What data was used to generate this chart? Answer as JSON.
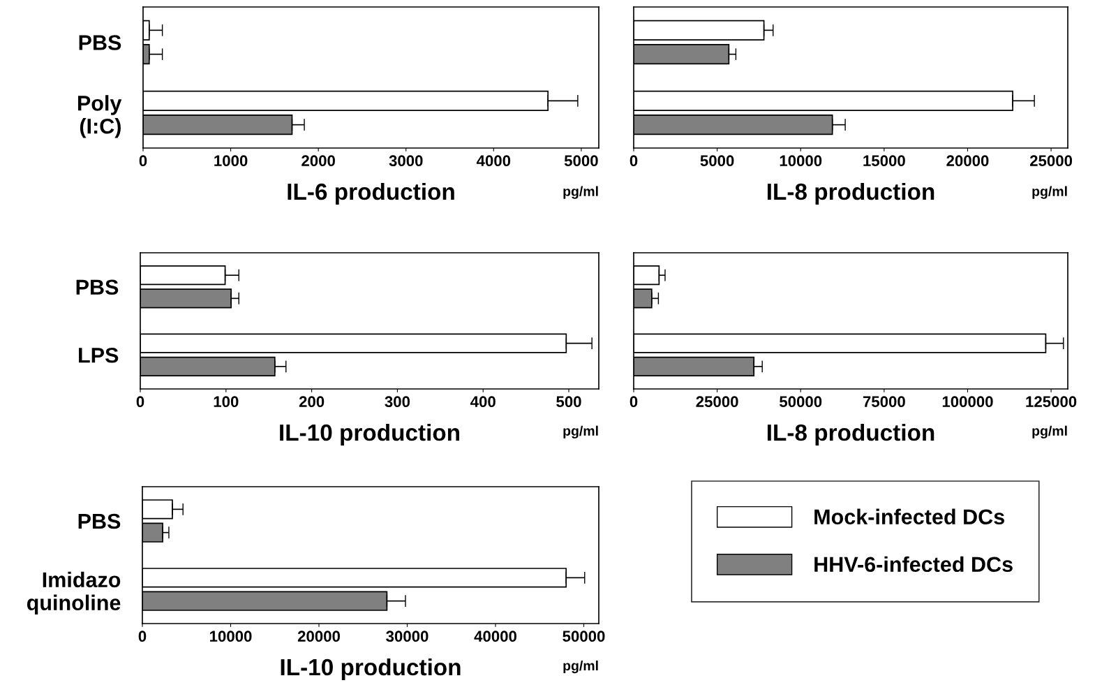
{
  "chart_data": [
    {
      "type": "bar",
      "orientation": "horizontal",
      "categories": [
        "PBS",
        "Poly\n(I:C)"
      ],
      "xlabel": "IL-6 production",
      "annotations": [
        "pg/ml"
      ],
      "xlim": [
        0,
        5200
      ],
      "xticks": [
        0,
        1000,
        2000,
        3000,
        4000,
        5000
      ],
      "series": [
        {
          "color": "#ffffff",
          "values": [
            70,
            4620
          ],
          "errors": [
            150,
            340
          ]
        },
        {
          "color": "#808080",
          "values": [
            70,
            1700
          ],
          "errors": [
            150,
            140
          ]
        }
      ]
    },
    {
      "type": "bar",
      "orientation": "horizontal",
      "categories": [
        null,
        null
      ],
      "xlabel": "IL-8 production",
      "annotations": [
        "pg/ml"
      ],
      "xlim": [
        0,
        26000
      ],
      "xticks": [
        0,
        5000,
        10000,
        15000,
        20000,
        25000
      ],
      "series": [
        {
          "color": "#ffffff",
          "values": [
            7800,
            22700
          ],
          "errors": [
            550,
            1300
          ]
        },
        {
          "color": "#808080",
          "values": [
            5700,
            11900
          ],
          "errors": [
            420,
            770
          ]
        }
      ]
    },
    {
      "type": "bar",
      "orientation": "horizontal",
      "categories": [
        "PBS",
        "LPS"
      ],
      "xlabel": "IL-10 production",
      "annotations": [
        "pg/ml"
      ],
      "xlim": [
        0,
        535
      ],
      "xticks": [
        0,
        100,
        200,
        300,
        400,
        500
      ],
      "series": [
        {
          "color": "#ffffff",
          "values": [
            99,
            497
          ],
          "errors": [
            16,
            30
          ]
        },
        {
          "color": "#808080",
          "values": [
            106,
            157
          ],
          "errors": [
            9,
            13
          ]
        }
      ]
    },
    {
      "type": "bar",
      "orientation": "horizontal",
      "categories": [
        null,
        null
      ],
      "xlabel": "IL-8 production",
      "annotations": [
        "pg/ml"
      ],
      "xlim": [
        0,
        130000
      ],
      "xticks": [
        0,
        25000,
        50000,
        75000,
        100000,
        125000
      ],
      "series": [
        {
          "color": "#ffffff",
          "values": [
            7600,
            123400
          ],
          "errors": [
            1800,
            5300
          ]
        },
        {
          "color": "#808080",
          "values": [
            5400,
            36000
          ],
          "errors": [
            2000,
            2500
          ]
        }
      ]
    },
    {
      "type": "bar",
      "orientation": "horizontal",
      "categories": [
        "PBS",
        "Imidazo\nquinoline"
      ],
      "xlabel": "IL-10 production",
      "annotations": [
        "pg/ml"
      ],
      "xlim": [
        0,
        51700
      ],
      "xticks": [
        0,
        10000,
        20000,
        30000,
        40000,
        50000
      ],
      "legend": "right",
      "series": [
        {
          "name": "Mock-infected DCs",
          "color": "#ffffff",
          "values": [
            3400,
            48000
          ],
          "errors": [
            1200,
            2100
          ]
        },
        {
          "name": "HHV-6-infected DCs",
          "color": "#808080",
          "values": [
            2300,
            27700
          ],
          "errors": [
            700,
            2100
          ]
        }
      ]
    }
  ]
}
